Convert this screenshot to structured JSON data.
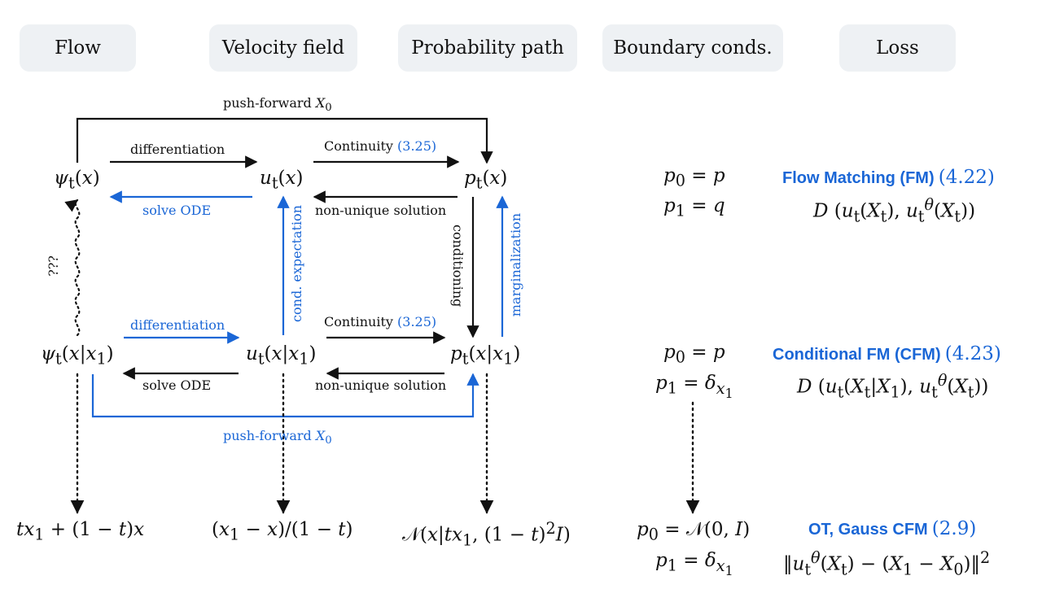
{
  "headers": [
    "Flow",
    "Velocity field",
    "Probability path",
    "Boundary conds.",
    "Loss"
  ],
  "nodes": {
    "psi_t": "ψ_t(x)",
    "u_t": "u_t(x)",
    "p_t": "p_t(x)",
    "psi_cond": "ψ_t(x|x_1)",
    "u_cond": "u_t(x|x_1)",
    "p_cond": "p_t(x|x_1)",
    "flow_ot": "tx_1 + (1 − t)x",
    "vel_ot": "(x_1 − x)/(1 − t)",
    "path_ot": "𝒩(x|tx_1, (1 − t)^2 I)"
  },
  "edges": {
    "push_top": "push-forward X_0",
    "diff_top": "differentiation",
    "cont_top": "Continuity",
    "cont_top_ref": "(3.25)",
    "solve_top": "solve ODE",
    "nonunique_top": "non-unique solution",
    "conditioning": "conditioning",
    "marginalization": "marginalization",
    "cond_expectation": "cond. expectation",
    "unknown": "???",
    "diff_bottom": "differentiation",
    "cont_bottom": "Continuity",
    "cont_bottom_ref": "(3.25)",
    "solve_bottom": "solve ODE",
    "nonunique_bottom": "non-unique solution",
    "push_bottom": "push-forward X_0"
  },
  "rows": [
    {
      "boundary": [
        "p_0 = p",
        "p_1 = q"
      ],
      "name": "Flow Matching (FM)",
      "ref": "(4.22)",
      "loss": "D (u_t(X_t), u_t^θ(X_t))"
    },
    {
      "boundary": [
        "p_0 = p",
        "p_1 = δ_x1"
      ],
      "name": "Conditional FM (CFM)",
      "ref": "(4.23)",
      "loss": "D (u_t(X_t|X_1), u_t^θ(X_t))"
    },
    {
      "boundary": [
        "p_0 = 𝒩(0, I)",
        "p_1 = δ_x1"
      ],
      "name": "OT, Gauss CFM",
      "ref": "(2.9)",
      "loss": "‖u_t^θ(X_t) − (X_1 − X_0)‖^2"
    }
  ],
  "colors": {
    "accent": "#1a66d6",
    "header_bg": "#eef1f4",
    "text": "#111111"
  }
}
